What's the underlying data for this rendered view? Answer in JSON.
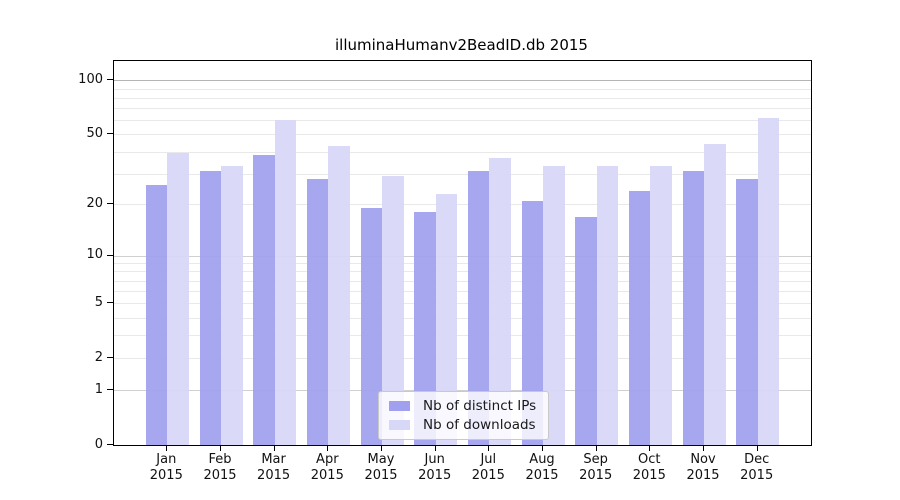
{
  "chart_data": {
    "type": "bar",
    "title": "illuminaHumanv2BeadID.db 2015",
    "categories": [
      "Jan",
      "Feb",
      "Mar",
      "Apr",
      "May",
      "Jun",
      "Jul",
      "Aug",
      "Sep",
      "Oct",
      "Nov",
      "Dec"
    ],
    "year_label": "2015",
    "series": [
      {
        "name": "Nb of distinct IPs",
        "color": "#a0a0ee",
        "values": [
          26,
          31,
          38,
          28,
          19,
          18,
          31,
          21,
          17,
          24,
          31,
          28
        ]
      },
      {
        "name": "Nb of downloads",
        "color": "#d7d7f8",
        "values": [
          39,
          33,
          60,
          43,
          29,
          23,
          37,
          33,
          33,
          33,
          44,
          62
        ]
      }
    ],
    "y_axis": {
      "scale": "log10(1+x)",
      "tick_labels": [
        "100",
        "50",
        "20",
        "10",
        "5",
        "2",
        "1",
        "0"
      ],
      "tick_values": [
        100,
        50,
        20,
        10,
        5,
        2,
        1,
        0
      ],
      "gridline_values": [
        1,
        2,
        3,
        4,
        5,
        6,
        7,
        8,
        9,
        10,
        20,
        30,
        40,
        50,
        60,
        70,
        80,
        90,
        100
      ],
      "ylim": [
        0,
        128
      ]
    },
    "xlabel": "",
    "ylabel": "",
    "grid": true,
    "legend_position": "bottom-center"
  }
}
